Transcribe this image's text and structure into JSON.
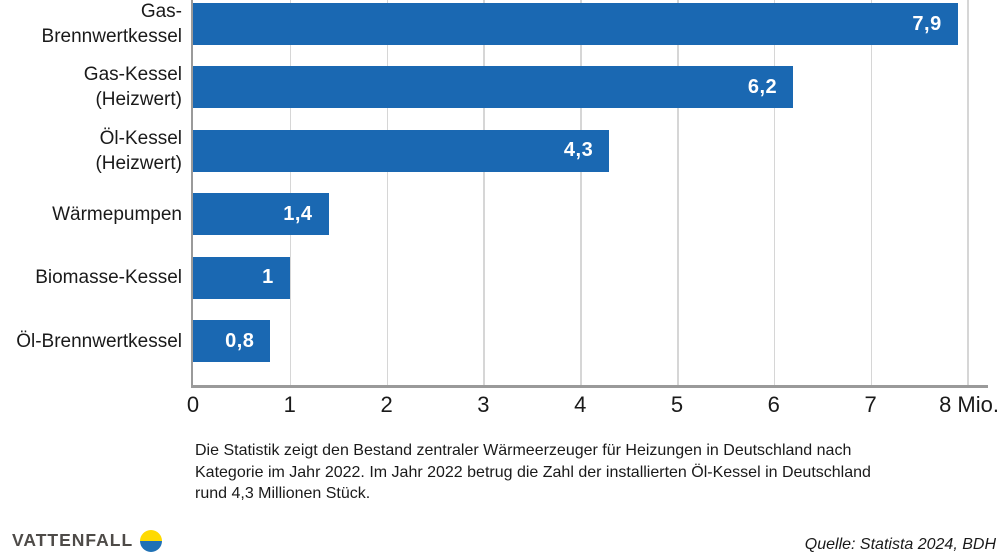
{
  "chart_data": {
    "type": "bar",
    "orientation": "horizontal",
    "categories": [
      "Gas-\nBrennwertkessel",
      "Gas-Kessel\n(Heizwert)",
      "Öl-Kessel\n(Heizwert)",
      "Wärmepumpen",
      "Biomasse-Kessel",
      "Öl-Brennwertkessel"
    ],
    "values": [
      7.9,
      6.2,
      4.3,
      1.4,
      1,
      0.8
    ],
    "value_labels": [
      "7,9",
      "6,2",
      "4,3",
      "1,4",
      "1",
      "0,8"
    ],
    "x_ticks": [
      "0",
      "1",
      "2",
      "3",
      "4",
      "5",
      "6",
      "7",
      "8 Mio."
    ],
    "xlim": [
      0,
      8.2
    ],
    "unit": "Mio.",
    "grid": true,
    "legend_position": "none",
    "bar_color": "#1A68B2"
  },
  "caption": "Die Statistik zeigt den Bestand zentraler Wärmeerzeuger für Heizungen in Deutschland nach Kategorie im Jahr 2022. Im Jahr 2022 betrug die Zahl der installierten Öl-Kessel in Deutschland rund 4,3 Millionen Stück.",
  "footer": {
    "brand": "VATTENFALL",
    "source": "Quelle: Statista 2024, BDH"
  },
  "colors": {
    "bar": "#1A68B2",
    "axis_line": "#9A9A9A",
    "gridline": "#D6D6D6",
    "text": "#1A1A1A",
    "value_text": "#FFFFFF",
    "logo_text": "#4E4B48",
    "logo_yellow": "#FFDA00",
    "logo_blue": "#2071B5"
  }
}
